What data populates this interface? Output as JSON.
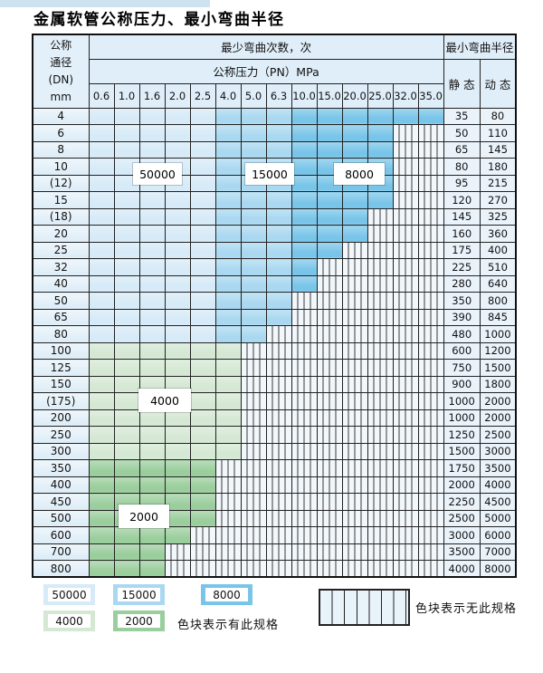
{
  "title": "金属软管公称压力、最小弯曲半径",
  "colors": {
    "zone_50000": "#d6eaf7",
    "zone_15000": "#a9d8f0",
    "zone_8000": "#79c5e9",
    "zone_4000": "#d4e8d3",
    "zone_2000": "#9bce9d",
    "header_bg": "#dfeef8",
    "grid_line": "#222222"
  },
  "table": {
    "corner": [
      "公称",
      "通径",
      "(DN)",
      "mm"
    ],
    "cycles_header": "最少弯曲次数，次",
    "pressure_header": "公称压力（PN）MPa",
    "radius_header": "最小弯曲半径",
    "static_label": "静 态",
    "dynamic_label": "动 态",
    "pressure_columns": [
      "0.6",
      "1.0",
      "1.6",
      "2.0",
      "2.5",
      "4.0",
      "5.0",
      "6.3",
      "10.0",
      "15.0",
      "20.0",
      "25.0",
      "32.0",
      "35.0"
    ],
    "rows": [
      {
        "dn": "4",
        "colored": 14,
        "zone": "blue",
        "static": "35",
        "dynamic": "80"
      },
      {
        "dn": "6",
        "colored": 12,
        "zone": "blue",
        "static": "50",
        "dynamic": "110"
      },
      {
        "dn": "8",
        "colored": 12,
        "zone": "blue",
        "static": "65",
        "dynamic": "145"
      },
      {
        "dn": "10",
        "colored": 12,
        "zone": "blue",
        "static": "80",
        "dynamic": "180"
      },
      {
        "dn": "(12)",
        "colored": 12,
        "zone": "blue",
        "static": "95",
        "dynamic": "215"
      },
      {
        "dn": "15",
        "colored": 12,
        "zone": "blue",
        "static": "120",
        "dynamic": "270"
      },
      {
        "dn": "(18)",
        "colored": 11,
        "zone": "blue",
        "static": "145",
        "dynamic": "325"
      },
      {
        "dn": "20",
        "colored": 11,
        "zone": "blue",
        "static": "160",
        "dynamic": "360"
      },
      {
        "dn": "25",
        "colored": 10,
        "zone": "blue",
        "static": "175",
        "dynamic": "400"
      },
      {
        "dn": "32",
        "colored": 9,
        "zone": "blue",
        "static": "225",
        "dynamic": "510"
      },
      {
        "dn": "40",
        "colored": 9,
        "zone": "blue",
        "static": "280",
        "dynamic": "640"
      },
      {
        "dn": "50",
        "colored": 8,
        "zone": "blue",
        "static": "350",
        "dynamic": "800"
      },
      {
        "dn": "65",
        "colored": 8,
        "zone": "blue",
        "static": "390",
        "dynamic": "845"
      },
      {
        "dn": "80",
        "colored": 7,
        "zone": "blue",
        "static": "480",
        "dynamic": "1000"
      },
      {
        "dn": "100",
        "colored": 6,
        "zone": "green4000",
        "static": "600",
        "dynamic": "1200"
      },
      {
        "dn": "125",
        "colored": 6,
        "zone": "green4000",
        "static": "750",
        "dynamic": "1500"
      },
      {
        "dn": "150",
        "colored": 6,
        "zone": "green4000",
        "static": "900",
        "dynamic": "1800"
      },
      {
        "dn": "(175)",
        "colored": 6,
        "zone": "green4000",
        "static": "1000",
        "dynamic": "2000"
      },
      {
        "dn": "200",
        "colored": 6,
        "zone": "green4000",
        "static": "1000",
        "dynamic": "2000"
      },
      {
        "dn": "250",
        "colored": 6,
        "zone": "green4000",
        "static": "1250",
        "dynamic": "2500"
      },
      {
        "dn": "300",
        "colored": 6,
        "zone": "green4000",
        "static": "1500",
        "dynamic": "3000"
      },
      {
        "dn": "350",
        "colored": 5,
        "zone": "green2000",
        "static": "1750",
        "dynamic": "3500"
      },
      {
        "dn": "400",
        "colored": 5,
        "zone": "green2000",
        "static": "2000",
        "dynamic": "4000"
      },
      {
        "dn": "450",
        "colored": 5,
        "zone": "green2000",
        "static": "2250",
        "dynamic": "4500"
      },
      {
        "dn": "500",
        "colored": 5,
        "zone": "green2000",
        "static": "2500",
        "dynamic": "5000"
      },
      {
        "dn": "600",
        "colored": 4,
        "zone": "green2000",
        "static": "3000",
        "dynamic": "6000"
      },
      {
        "dn": "700",
        "colored": 3,
        "zone": "green2000",
        "static": "3500",
        "dynamic": "7000"
      },
      {
        "dn": "800",
        "colored": 3,
        "zone": "green2000",
        "static": "4000",
        "dynamic": "8000"
      }
    ]
  },
  "zone_labels": [
    {
      "text": "50000"
    },
    {
      "text": "15000"
    },
    {
      "text": "8000"
    },
    {
      "text": "4000"
    },
    {
      "text": "2000"
    }
  ],
  "legend": {
    "items": [
      {
        "label": "50000"
      },
      {
        "label": "15000"
      },
      {
        "label": "8000"
      },
      {
        "label": "4000"
      },
      {
        "label": "2000"
      }
    ],
    "available_note": "色块表示有此规格",
    "unavailable_note": "色块表示无此规格"
  }
}
